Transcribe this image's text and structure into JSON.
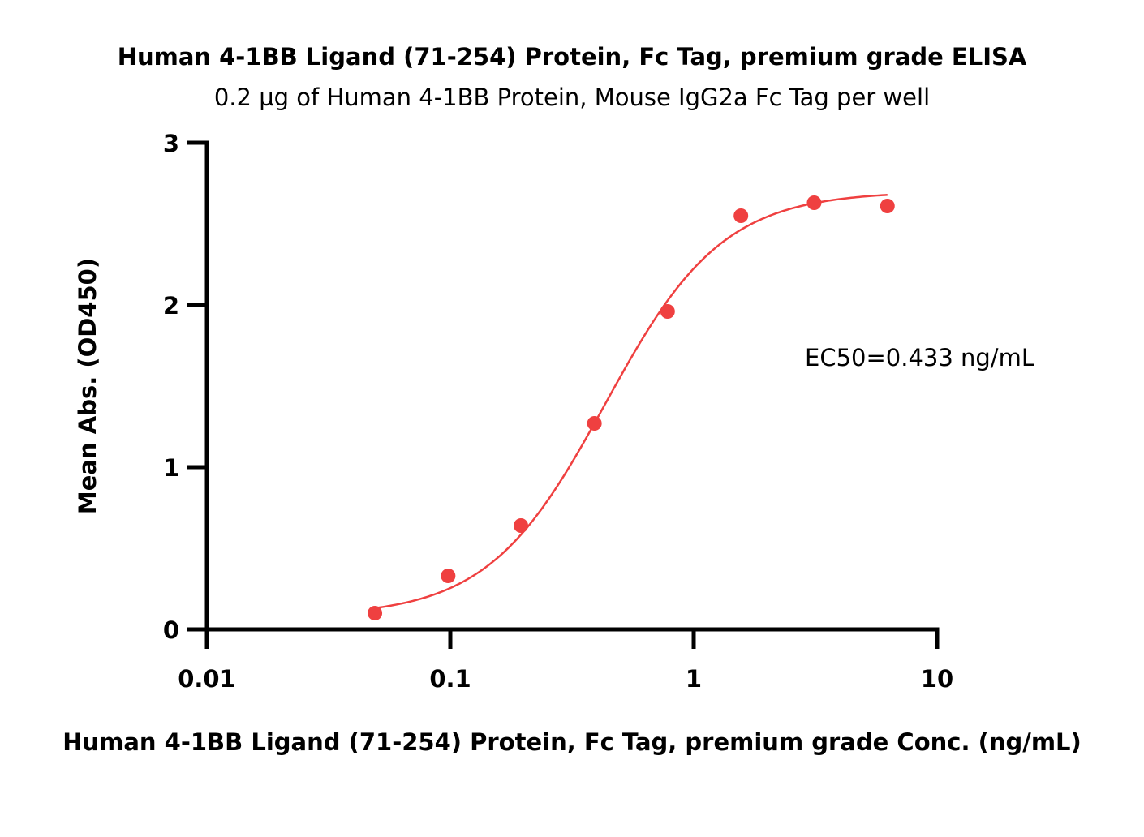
{
  "chart_data": {
    "type": "scatter",
    "title": "Human 4-1BB Ligand (71-254) Protein, Fc Tag, premium grade ELISA",
    "subtitle": "0.2 µg of Human 4-1BB Protein, Mouse IgG2a Fc Tag per well",
    "xlabel": "Human 4-1BB Ligand (71-254) Protein, Fc Tag, premium grade Conc. (ng/mL)",
    "ylabel": "Mean Abs. (OD450)",
    "x_scale": "log",
    "xlim": [
      0.01,
      10
    ],
    "ylim": [
      0,
      3
    ],
    "x_ticks": [
      0.01,
      0.1,
      1,
      10
    ],
    "x_tick_labels": [
      "0.01",
      "0.1",
      "1",
      "10"
    ],
    "y_ticks": [
      0,
      1,
      2,
      3
    ],
    "y_tick_labels": [
      "0",
      "1",
      "2",
      "3"
    ],
    "grid": false,
    "annotation": "EC50=0.433 ng/mL",
    "color": "#ef4040",
    "series": [
      {
        "x": [
          0.049,
          0.098,
          0.195,
          0.391,
          0.781,
          1.563,
          3.125,
          6.25
        ],
        "y": [
          0.1,
          0.33,
          0.64,
          1.27,
          1.96,
          2.55,
          2.63,
          2.61
        ]
      }
    ],
    "fit_curve": {
      "model": "4PL",
      "bottom": 0.08,
      "top": 2.7,
      "ec50": 0.433,
      "hill": 1.8,
      "x_range": [
        0.049,
        6.25
      ]
    }
  }
}
